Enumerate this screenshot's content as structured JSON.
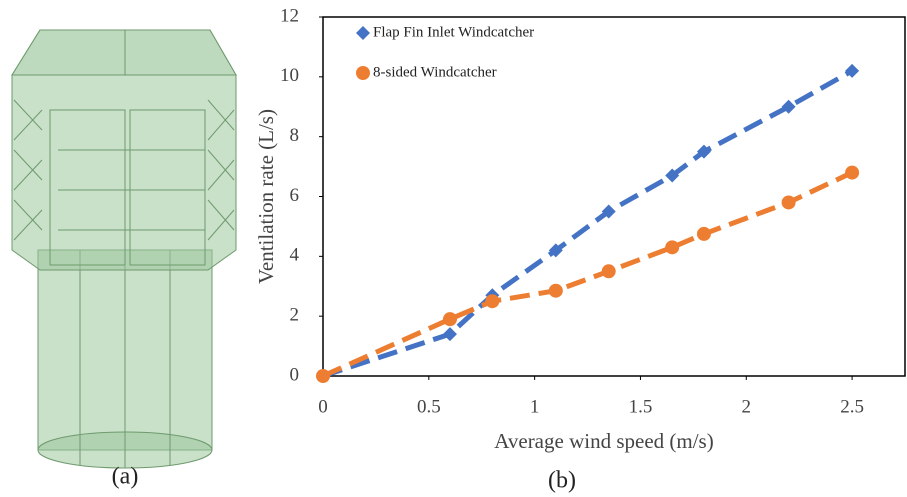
{
  "figure_a": {
    "caption": "(a)"
  },
  "chart_data": {
    "type": "line",
    "caption": "(b)",
    "x_label": "Average wind speed (m/s)",
    "y_label": "Ventilation rate (L/s)",
    "x": [
      0,
      0.6,
      0.8,
      1.1,
      1.35,
      1.65,
      1.8,
      2.2,
      2.5
    ],
    "series": [
      {
        "name": "Flap Fin Inlet Windcatcher",
        "color": "#4472c4",
        "marker": "diamond",
        "values": [
          0,
          1.4,
          2.7,
          4.2,
          5.5,
          6.7,
          7.5,
          9.0,
          10.2
        ]
      },
      {
        "name": "8-sided Windcatcher",
        "color": "#ed7d31",
        "marker": "circle",
        "values": [
          0,
          1.9,
          2.5,
          2.85,
          3.5,
          4.3,
          4.75,
          5.8,
          6.8
        ]
      }
    ],
    "xlim": [
      0,
      2.75
    ],
    "xticks": [
      0,
      0.5,
      1,
      1.5,
      2,
      2.5
    ],
    "ylim": [
      0,
      12
    ],
    "yticks": [
      0,
      2,
      4,
      6,
      8,
      10,
      12
    ],
    "legend": "upper left",
    "line_style": "dashed"
  }
}
